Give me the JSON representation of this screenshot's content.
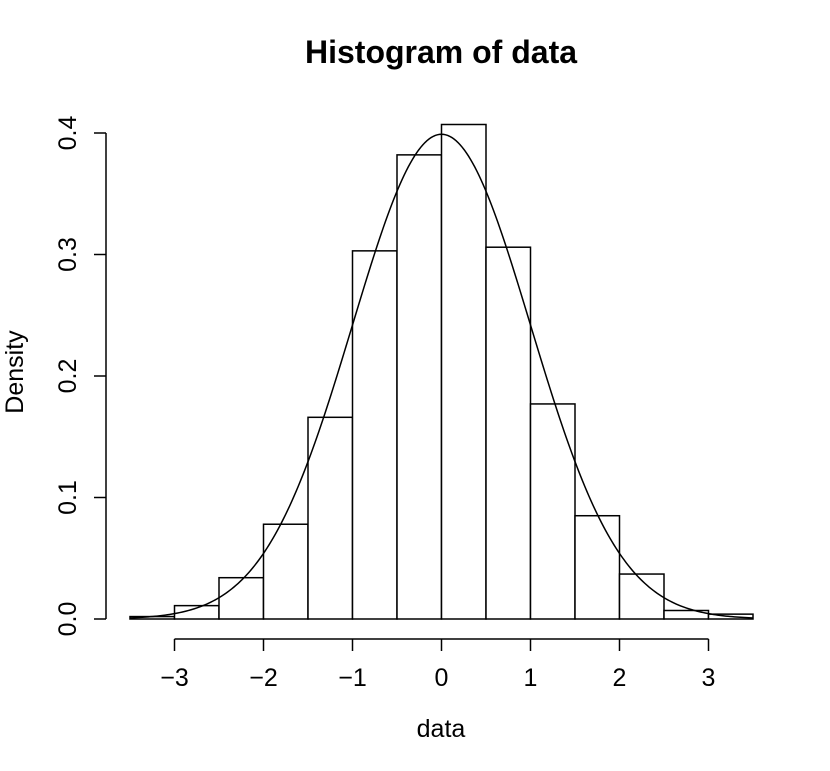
{
  "chart_data": {
    "type": "bar",
    "title": "Histogram of data",
    "xlabel": "data",
    "ylabel": "Density",
    "xlim": [
      -3.5,
      3.5
    ],
    "ylim": [
      0,
      0.4
    ],
    "x_ticks": [
      -3,
      -2,
      -1,
      0,
      1,
      2,
      3
    ],
    "x_tick_labels": [
      "−3",
      "−2",
      "−1",
      "0",
      "1",
      "2",
      "3"
    ],
    "y_ticks": [
      0,
      0.1,
      0.2,
      0.3,
      0.4
    ],
    "y_tick_labels": [
      "0.0",
      "0.1",
      "0.2",
      "0.3",
      "0.4"
    ],
    "bins": [
      {
        "x0": -3.5,
        "x1": -3.0,
        "density": 0.002
      },
      {
        "x0": -3.0,
        "x1": -2.5,
        "density": 0.011
      },
      {
        "x0": -2.5,
        "x1": -2.0,
        "density": 0.034
      },
      {
        "x0": -2.0,
        "x1": -1.5,
        "density": 0.078
      },
      {
        "x0": -1.5,
        "x1": -1.0,
        "density": 0.166
      },
      {
        "x0": -1.0,
        "x1": -0.5,
        "density": 0.303
      },
      {
        "x0": -0.5,
        "x1": 0.0,
        "density": 0.382
      },
      {
        "x0": 0.0,
        "x1": 0.5,
        "density": 0.407
      },
      {
        "x0": 0.5,
        "x1": 1.0,
        "density": 0.306
      },
      {
        "x0": 1.0,
        "x1": 1.5,
        "density": 0.177
      },
      {
        "x0": 1.5,
        "x1": 2.0,
        "density": 0.085
      },
      {
        "x0": 2.0,
        "x1": 2.5,
        "density": 0.037
      },
      {
        "x0": 2.5,
        "x1": 3.0,
        "density": 0.007
      },
      {
        "x0": 3.0,
        "x1": 3.5,
        "density": 0.004
      }
    ],
    "overlay_curve": {
      "type": "normal-density",
      "mean": 0,
      "sd": 1
    },
    "grid": false
  }
}
